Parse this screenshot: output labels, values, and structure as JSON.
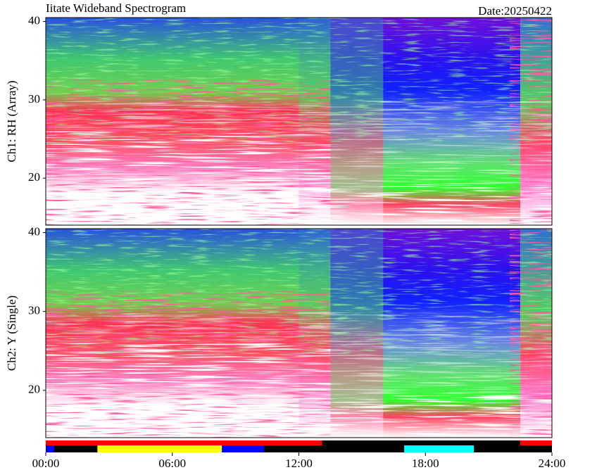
{
  "title": "Iitate Wideband Spectrogram",
  "date": "Date:20250422",
  "chart_data": [
    {
      "type": "spectrogram",
      "ylabel": "Ch1: RH (Array)",
      "xlim": [
        0,
        24
      ],
      "ylim": [
        14,
        40.5
      ],
      "yticks": [
        20,
        30,
        40
      ]
    },
    {
      "type": "spectrogram",
      "ylabel": "Ch2: Y (Single)",
      "xlim": [
        0,
        24
      ],
      "ylim": [
        14,
        40.5
      ],
      "yticks": [
        20,
        30,
        40
      ],
      "xticks": [
        {
          "value": 0,
          "label": "00:00"
        },
        {
          "value": 6,
          "label": "06:00"
        },
        {
          "value": 12,
          "label": "12:00"
        },
        {
          "value": 18,
          "label": "18:00"
        },
        {
          "value": 24,
          "label": "24:00"
        }
      ]
    }
  ],
  "status_bars": [
    {
      "segments": [
        {
          "start": 0,
          "end": 13.1,
          "color": "#ff0000"
        },
        {
          "start": 13.1,
          "end": 22.5,
          "color": "#000000"
        },
        {
          "start": 22.5,
          "end": 24,
          "color": "#ff0000"
        }
      ]
    },
    {
      "segments": [
        {
          "start": 0,
          "end": 0.4,
          "color": "#0000ff"
        },
        {
          "start": 0.4,
          "end": 2.45,
          "color": "#000000"
        },
        {
          "start": 2.45,
          "end": 8.35,
          "color": "#ffff00"
        },
        {
          "start": 8.35,
          "end": 10.35,
          "color": "#0000ff"
        },
        {
          "start": 10.35,
          "end": 17,
          "color": "#000000"
        },
        {
          "start": 17,
          "end": 20.3,
          "color": "#00ffff"
        },
        {
          "start": 20.3,
          "end": 24,
          "color": "#000000"
        }
      ]
    }
  ]
}
